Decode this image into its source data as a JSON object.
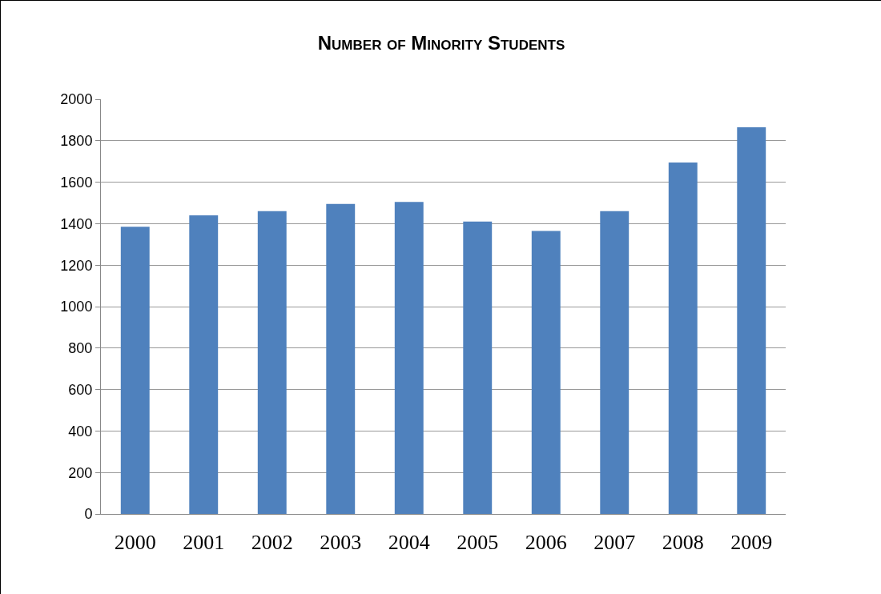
{
  "chart_data": {
    "type": "bar",
    "title": "Number of Minority Students",
    "categories": [
      "2000",
      "2001",
      "2002",
      "2003",
      "2004",
      "2005",
      "2006",
      "2007",
      "2008",
      "2009"
    ],
    "values": [
      1385,
      1440,
      1460,
      1495,
      1505,
      1410,
      1365,
      1460,
      1695,
      1865
    ],
    "color": "#4f81bd",
    "ylim": [
      0,
      2000
    ],
    "yticks": [
      0,
      200,
      400,
      600,
      800,
      1000,
      1200,
      1400,
      1600,
      1800,
      2000
    ],
    "grid": "y"
  }
}
